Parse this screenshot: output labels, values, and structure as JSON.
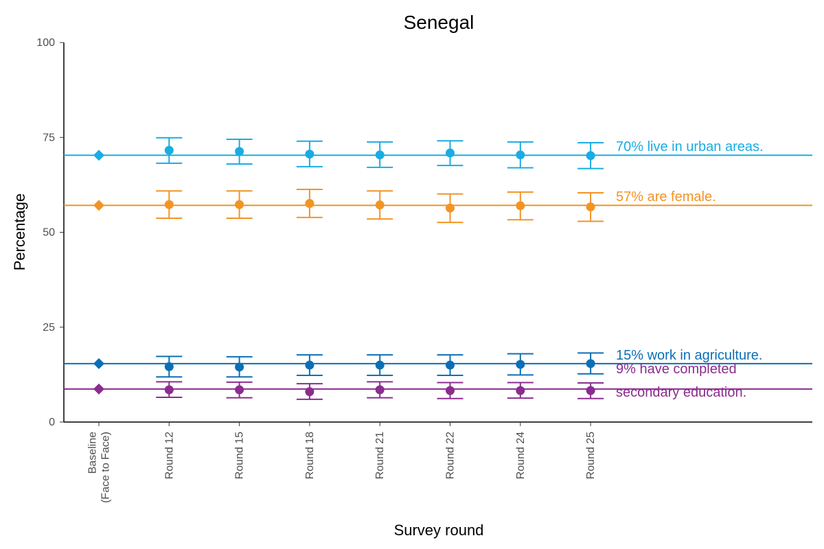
{
  "chart_data": {
    "type": "scatter",
    "title": "Senegal",
    "xlabel": "Survey round",
    "ylabel": "Percentage",
    "ylim": [
      0,
      100
    ],
    "yticks": [
      0,
      25,
      50,
      75,
      100
    ],
    "grid": false,
    "categories": [
      [
        "Baseline",
        "(Face to Face)"
      ],
      [
        "Round 12"
      ],
      [
        "Round 15"
      ],
      [
        "Round 18"
      ],
      [
        "Round 21"
      ],
      [
        "Round 22"
      ],
      [
        "Round 24"
      ],
      [
        "Round 25"
      ]
    ],
    "series": [
      {
        "key": "urban",
        "label": [
          "70% live in urban areas."
        ],
        "color": "#1AACE3",
        "baseline": 70.3,
        "values": [
          70.3,
          71.6,
          71.3,
          70.6,
          70.4,
          70.9,
          70.4,
          70.2
        ],
        "lower": [
          null,
          68.2,
          68.0,
          67.3,
          67.1,
          67.6,
          67.0,
          66.8
        ],
        "upper": [
          null,
          74.9,
          74.5,
          74.0,
          73.8,
          74.1,
          73.8,
          73.6
        ]
      },
      {
        "key": "female",
        "label": [
          "57% are female."
        ],
        "color": "#F29424",
        "baseline": 57.1,
        "values": [
          57.1,
          57.3,
          57.3,
          57.6,
          57.2,
          56.4,
          57.0,
          56.7
        ],
        "lower": [
          null,
          53.7,
          53.7,
          53.9,
          53.5,
          52.6,
          53.3,
          52.9
        ],
        "upper": [
          null,
          60.9,
          60.9,
          61.3,
          60.9,
          60.1,
          60.6,
          60.4
        ]
      },
      {
        "key": "agriculture",
        "label": [
          "15% work in agriculture."
        ],
        "color": "#0B6FB6",
        "baseline": 15.4,
        "values": [
          15.4,
          14.6,
          14.5,
          15.0,
          15.0,
          15.0,
          15.2,
          15.4
        ],
        "lower": [
          null,
          11.9,
          11.9,
          12.3,
          12.3,
          12.3,
          12.4,
          12.7
        ],
        "upper": [
          null,
          17.3,
          17.2,
          17.7,
          17.7,
          17.7,
          18.0,
          18.2
        ]
      },
      {
        "key": "secondary",
        "label": [
          "9% have completed",
          "secondary education."
        ],
        "color": "#8B2C8E",
        "baseline": 8.7,
        "values": [
          8.7,
          8.5,
          8.5,
          8.0,
          8.5,
          8.3,
          8.3,
          8.3
        ],
        "lower": [
          null,
          6.5,
          6.4,
          6.0,
          6.4,
          6.2,
          6.3,
          6.2
        ],
        "upper": [
          null,
          10.6,
          10.5,
          10.1,
          10.6,
          10.4,
          10.4,
          10.3
        ]
      }
    ]
  }
}
